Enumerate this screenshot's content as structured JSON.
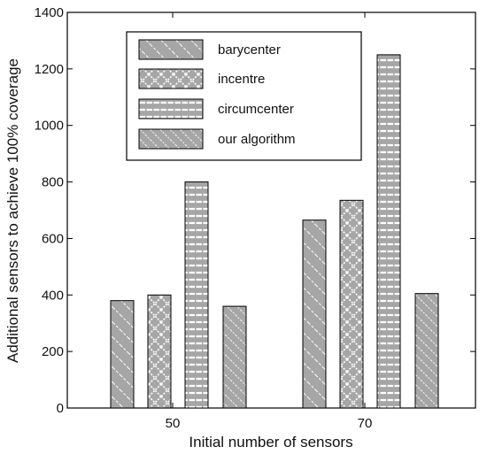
{
  "chart_data": {
    "type": "bar",
    "xlabel": "Initial number of sensors",
    "ylabel": "Additional sensors to achieve 100% coverage",
    "categories": [
      "50",
      "70"
    ],
    "ylim": [
      0,
      1400
    ],
    "yticks": [
      0,
      200,
      400,
      600,
      800,
      1000,
      1200,
      1400
    ],
    "series": [
      {
        "name": "barycenter",
        "values": [
          380,
          665
        ],
        "pattern": "diagonal-forward"
      },
      {
        "name": "incentre",
        "values": [
          400,
          735
        ],
        "pattern": "crosshatch"
      },
      {
        "name": "circumcenter",
        "values": [
          800,
          1250
        ],
        "pattern": "horizontal"
      },
      {
        "name": "our algorithm",
        "values": [
          360,
          405
        ],
        "pattern": "diagonal-dense"
      }
    ],
    "legend_position": "top-left",
    "grid": false,
    "bar_color": "#a6a6a6",
    "stripe_color": "#ffffff"
  }
}
